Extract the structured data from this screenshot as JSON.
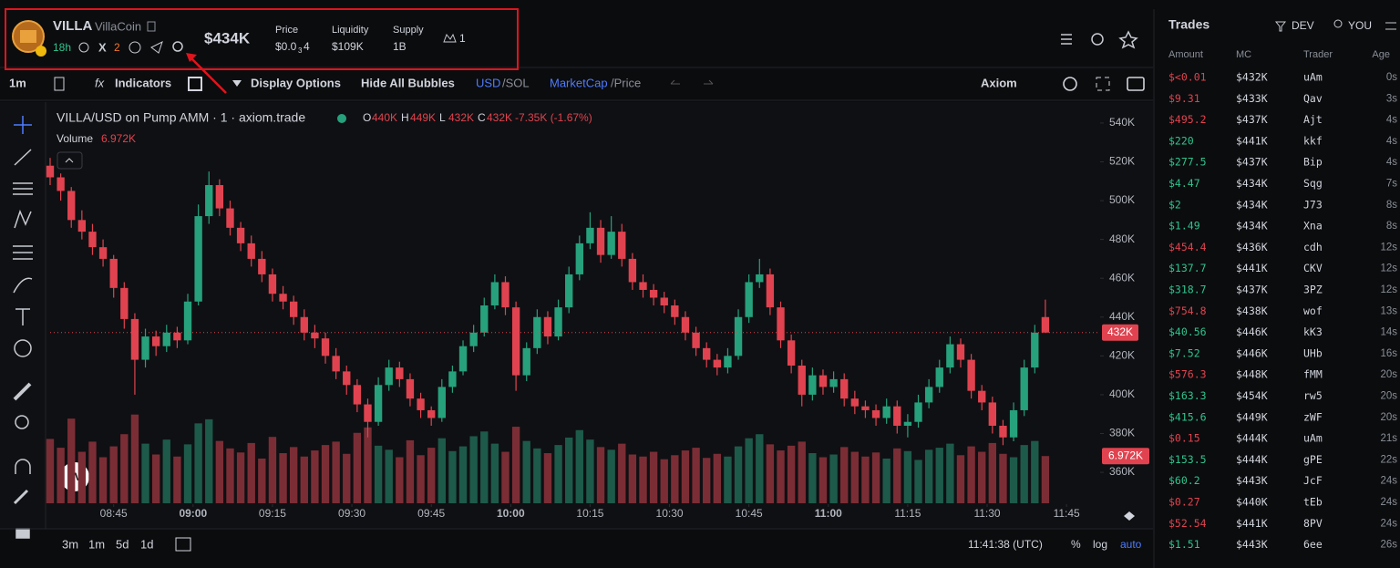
{
  "header": {
    "symbol": "VILLA",
    "name": "VillaCoin",
    "age": "18h",
    "x_count": "2",
    "market_cap": "$434K",
    "price_label": "Price",
    "price": "$0.0",
    "price_sub": "3",
    "price_tail": "4",
    "liquidity_label": "Liquidity",
    "liquidity": "$109K",
    "supply_label": "Supply",
    "supply": "1B",
    "holders": "1"
  },
  "toolbar": {
    "interval": "1m",
    "indicators": "Indicators",
    "display_options": "Display Options",
    "hide_bubbles": "Hide All Bubbles",
    "currency_on": "USD",
    "currency_off": "/SOL",
    "mode_on": "MarketCap",
    "mode_off": "/Price",
    "source": "Axiom"
  },
  "chart_legend": {
    "title": "VILLA/USD on Pump AMM · 1 · axiom.trade",
    "ohlc": [
      {
        "key": "O",
        "value": "440K"
      },
      {
        "key": "H",
        "value": "449K"
      },
      {
        "key": "L",
        "value": "432K"
      },
      {
        "key": "C",
        "value": "432K"
      }
    ],
    "change": "-7.35K (-1.67%)",
    "volume_label": "Volume",
    "volume_value": "6.972K"
  },
  "chart_data": {
    "type": "candlestick",
    "up_color": "#26a17b",
    "down_color": "#e0434f",
    "up_volume_color": "#1d5a4a",
    "down_volume_color": "#7b2d35",
    "xlim": [
      513,
      711
    ],
    "xticks": [
      {
        "value": 525,
        "label": "08:45"
      },
      {
        "value": 540,
        "label": "09:00"
      },
      {
        "value": 555,
        "label": "09:15"
      },
      {
        "value": 570,
        "label": "09:30"
      },
      {
        "value": 585,
        "label": "09:45"
      },
      {
        "value": 600,
        "label": "10:00"
      },
      {
        "value": 615,
        "label": "10:15"
      },
      {
        "value": 630,
        "label": "10:30"
      },
      {
        "value": 645,
        "label": "10:45"
      },
      {
        "value": 660,
        "label": "11:00"
      },
      {
        "value": 675,
        "label": "11:15"
      },
      {
        "value": 690,
        "label": "11:30"
      },
      {
        "value": 705,
        "label": "11:45"
      }
    ],
    "ylim": [
      345,
      547
    ],
    "yticks": [
      {
        "value": 540,
        "label": "540K"
      },
      {
        "value": 520,
        "label": "520K"
      },
      {
        "value": 500,
        "label": "500K"
      },
      {
        "value": 480,
        "label": "480K"
      },
      {
        "value": 460,
        "label": "460K"
      },
      {
        "value": 440,
        "label": "440K"
      },
      {
        "value": 420,
        "label": "420K"
      },
      {
        "value": 400,
        "label": "400K"
      },
      {
        "value": 380,
        "label": "380K"
      },
      {
        "value": 360,
        "label": "360K"
      }
    ],
    "volume_ylim": [
      0,
      14
    ],
    "x": [
      513,
      515,
      517,
      519,
      521,
      523,
      525,
      527,
      529,
      531,
      533,
      535,
      537,
      539,
      541,
      543,
      545,
      547,
      549,
      551,
      553,
      555,
      557,
      559,
      561,
      563,
      565,
      567,
      569,
      571,
      573,
      575,
      577,
      579,
      581,
      583,
      585,
      587,
      589,
      591,
      593,
      595,
      597,
      599,
      601,
      603,
      605,
      607,
      609,
      611,
      613,
      615,
      617,
      619,
      621,
      623,
      625,
      627,
      629,
      631,
      633,
      635,
      637,
      639,
      641,
      643,
      645,
      647,
      649,
      651,
      653,
      655,
      657,
      659,
      661,
      663,
      665,
      667,
      669,
      671,
      673,
      675,
      677,
      679,
      681,
      683,
      685,
      687,
      689,
      691,
      693,
      695,
      697,
      699,
      701
    ],
    "candles": [
      [
        518,
        522,
        508,
        512
      ],
      [
        512,
        514,
        500,
        505
      ],
      [
        505,
        507,
        486,
        490
      ],
      [
        490,
        495,
        480,
        484
      ],
      [
        484,
        488,
        472,
        476
      ],
      [
        476,
        480,
        466,
        470
      ],
      [
        470,
        472,
        450,
        455
      ],
      [
        455,
        458,
        434,
        439
      ],
      [
        439,
        442,
        400,
        418
      ],
      [
        418,
        434,
        414,
        430
      ],
      [
        430,
        433,
        420,
        425
      ],
      [
        425,
        436,
        422,
        432
      ],
      [
        432,
        435,
        424,
        428
      ],
      [
        428,
        452,
        426,
        448
      ],
      [
        448,
        498,
        446,
        492
      ],
      [
        492,
        515,
        488,
        508
      ],
      [
        508,
        511,
        492,
        496
      ],
      [
        496,
        500,
        482,
        486
      ],
      [
        486,
        489,
        474,
        478
      ],
      [
        478,
        482,
        466,
        470
      ],
      [
        470,
        474,
        458,
        462
      ],
      [
        462,
        465,
        448,
        452
      ],
      [
        452,
        456,
        444,
        448
      ],
      [
        448,
        451,
        436,
        440
      ],
      [
        440,
        444,
        428,
        432
      ],
      [
        432,
        436,
        424,
        429
      ],
      [
        429,
        432,
        416,
        420
      ],
      [
        420,
        424,
        408,
        412
      ],
      [
        412,
        415,
        400,
        405
      ],
      [
        405,
        408,
        391,
        395
      ],
      [
        395,
        398,
        378,
        386
      ],
      [
        386,
        409,
        384,
        405
      ],
      [
        405,
        418,
        402,
        414
      ],
      [
        414,
        417,
        404,
        408
      ],
      [
        408,
        411,
        394,
        398
      ],
      [
        398,
        401,
        388,
        392
      ],
      [
        392,
        394,
        384,
        388
      ],
      [
        388,
        408,
        386,
        404
      ],
      [
        404,
        415,
        401,
        412
      ],
      [
        412,
        428,
        410,
        425
      ],
      [
        425,
        436,
        422,
        432
      ],
      [
        432,
        450,
        430,
        446
      ],
      [
        446,
        462,
        444,
        458
      ],
      [
        458,
        461,
        441,
        445
      ],
      [
        445,
        448,
        402,
        410
      ],
      [
        410,
        427,
        407,
        424
      ],
      [
        424,
        444,
        421,
        440
      ],
      [
        440,
        443,
        426,
        430
      ],
      [
        430,
        449,
        428,
        445
      ],
      [
        445,
        466,
        442,
        462
      ],
      [
        462,
        482,
        459,
        478
      ],
      [
        478,
        494,
        475,
        486
      ],
      [
        486,
        490,
        468,
        472
      ],
      [
        472,
        492,
        470,
        484
      ],
      [
        484,
        488,
        466,
        470
      ],
      [
        470,
        473,
        454,
        458
      ],
      [
        458,
        462,
        450,
        454
      ],
      [
        454,
        457,
        446,
        450
      ],
      [
        450,
        453,
        442,
        446
      ],
      [
        446,
        449,
        436,
        440
      ],
      [
        440,
        443,
        428,
        432
      ],
      [
        432,
        435,
        420,
        424
      ],
      [
        424,
        427,
        414,
        418
      ],
      [
        418,
        421,
        410,
        414
      ],
      [
        414,
        424,
        411,
        420
      ],
      [
        420,
        444,
        418,
        440
      ],
      [
        440,
        462,
        437,
        458
      ],
      [
        458,
        470,
        455,
        462
      ],
      [
        462,
        465,
        441,
        445
      ],
      [
        445,
        448,
        424,
        428
      ],
      [
        428,
        431,
        411,
        415
      ],
      [
        415,
        418,
        394,
        400
      ],
      [
        400,
        414,
        397,
        410
      ],
      [
        410,
        413,
        400,
        404
      ],
      [
        404,
        412,
        401,
        408
      ],
      [
        408,
        411,
        394,
        398
      ],
      [
        398,
        402,
        390,
        394
      ],
      [
        394,
        397,
        388,
        392
      ],
      [
        392,
        395,
        384,
        388
      ],
      [
        388,
        398,
        385,
        394
      ],
      [
        394,
        397,
        380,
        384
      ],
      [
        384,
        390,
        378,
        386
      ],
      [
        386,
        400,
        383,
        396
      ],
      [
        396,
        408,
        393,
        404
      ],
      [
        404,
        418,
        401,
        414
      ],
      [
        414,
        430,
        411,
        426
      ],
      [
        426,
        429,
        414,
        418
      ],
      [
        418,
        421,
        398,
        402
      ],
      [
        402,
        405,
        392,
        396
      ],
      [
        396,
        399,
        380,
        384
      ],
      [
        384,
        387,
        374,
        378
      ],
      [
        378,
        396,
        376,
        392
      ],
      [
        392,
        418,
        389,
        414
      ],
      [
        414,
        436,
        411,
        432
      ],
      [
        440,
        449,
        432,
        432
      ]
    ],
    "volume": [
      9.5,
      8.2,
      12.5,
      7.6,
      9.1,
      6.8,
      8.4,
      10.2,
      13.1,
      8.8,
      7.2,
      9.4,
      6.9,
      8.7,
      11.8,
      12.4,
      9.2,
      8.1,
      7.5,
      8.9,
      6.6,
      9.8,
      7.4,
      8.3,
      6.9,
      7.8,
      8.6,
      9.1,
      7.3,
      10.4,
      11.2,
      8.5,
      7.9,
      6.8,
      9.3,
      7.1,
      8.2,
      9.6,
      7.7,
      8.4,
      9.9,
      10.6,
      8.8,
      7.6,
      11.3,
      9.2,
      8.1,
      7.4,
      8.6,
      9.7,
      10.8,
      9.4,
      8.3,
      7.9,
      8.8,
      7.2,
      6.9,
      7.6,
      6.5,
      7.1,
      7.8,
      8.2,
      6.7,
      7.3,
      6.9,
      8.4,
      9.6,
      10.2,
      8.7,
      7.8,
      8.5,
      9.1,
      7.4,
      6.8,
      7.2,
      8.3,
      7.6,
      6.9,
      7.5,
      6.6,
      8.1,
      7.7,
      6.4,
      7.9,
      8.2,
      8.8,
      7.1,
      8.4,
      7.6,
      8.9,
      7.3,
      6.8,
      8.6,
      9.2,
      6.972
    ],
    "price_tag": {
      "value": 432,
      "label": "432K"
    },
    "volume_tag": {
      "value": 6.972,
      "label": "6.972K"
    }
  },
  "bottom_bar": {
    "ranges": [
      "3m",
      "1m",
      "5d",
      "1d"
    ],
    "clock": "11:41:38 (UTC)",
    "percent": "%",
    "log": "log",
    "auto": "auto"
  },
  "trades": {
    "title": "Trades",
    "dev": "DEV",
    "you": "YOU",
    "columns": [
      "Amount",
      "MC",
      "Trader",
      "Age"
    ],
    "rows": [
      {
        "amount": "$<0.01",
        "mc": "$432K",
        "trader": "uAm",
        "age": "0s",
        "color": "#e0434f"
      },
      {
        "amount": "$9.31",
        "mc": "$433K",
        "trader": "Qav",
        "age": "3s",
        "color": "#e0434f"
      },
      {
        "amount": "$495.2",
        "mc": "$437K",
        "trader": "Ajt",
        "age": "4s",
        "color": "#e0434f"
      },
      {
        "amount": "$220",
        "mc": "$441K",
        "trader": "kkf",
        "age": "4s",
        "color": "#2fc58e"
      },
      {
        "amount": "$277.5",
        "mc": "$437K",
        "trader": "Bip",
        "age": "4s",
        "color": "#2fc58e"
      },
      {
        "amount": "$4.47",
        "mc": "$434K",
        "trader": "Sqg",
        "age": "7s",
        "color": "#2fc58e"
      },
      {
        "amount": "$2",
        "mc": "$434K",
        "trader": "J73",
        "age": "8s",
        "color": "#2fc58e"
      },
      {
        "amount": "$1.49",
        "mc": "$434K",
        "trader": "Xna",
        "age": "8s",
        "color": "#2fc58e"
      },
      {
        "amount": "$454.4",
        "mc": "$436K",
        "trader": "cdh",
        "age": "12s",
        "color": "#e0434f"
      },
      {
        "amount": "$137.7",
        "mc": "$441K",
        "trader": "CKV",
        "age": "12s",
        "color": "#2fc58e"
      },
      {
        "amount": "$318.7",
        "mc": "$437K",
        "trader": "3PZ",
        "age": "12s",
        "color": "#2fc58e"
      },
      {
        "amount": "$754.8",
        "mc": "$438K",
        "trader": "wof",
        "age": "13s",
        "color": "#e0434f"
      },
      {
        "amount": "$40.56",
        "mc": "$446K",
        "trader": "kK3",
        "age": "14s",
        "color": "#2fc58e"
      },
      {
        "amount": "$7.52",
        "mc": "$446K",
        "trader": "UHb",
        "age": "16s",
        "color": "#2fc58e"
      },
      {
        "amount": "$576.3",
        "mc": "$448K",
        "trader": "fMM",
        "age": "20s",
        "color": "#e0434f"
      },
      {
        "amount": "$163.3",
        "mc": "$454K",
        "trader": "rw5",
        "age": "20s",
        "color": "#2fc58e"
      },
      {
        "amount": "$415.6",
        "mc": "$449K",
        "trader": "zWF",
        "age": "20s",
        "color": "#2fc58e"
      },
      {
        "amount": "$0.15",
        "mc": "$444K",
        "trader": "uAm",
        "age": "21s",
        "color": "#e0434f"
      },
      {
        "amount": "$153.5",
        "mc": "$444K",
        "trader": "gPE",
        "age": "22s",
        "color": "#2fc58e"
      },
      {
        "amount": "$60.2",
        "mc": "$443K",
        "trader": "JcF",
        "age": "24s",
        "color": "#2fc58e"
      },
      {
        "amount": "$0.27",
        "mc": "$440K",
        "trader": "tEb",
        "age": "24s",
        "color": "#e0434f"
      },
      {
        "amount": "$52.54",
        "mc": "$441K",
        "trader": "8PV",
        "age": "24s",
        "color": "#e0434f"
      },
      {
        "amount": "$1.51",
        "mc": "$443K",
        "trader": "6ee",
        "age": "26s",
        "color": "#2fc58e"
      }
    ]
  }
}
